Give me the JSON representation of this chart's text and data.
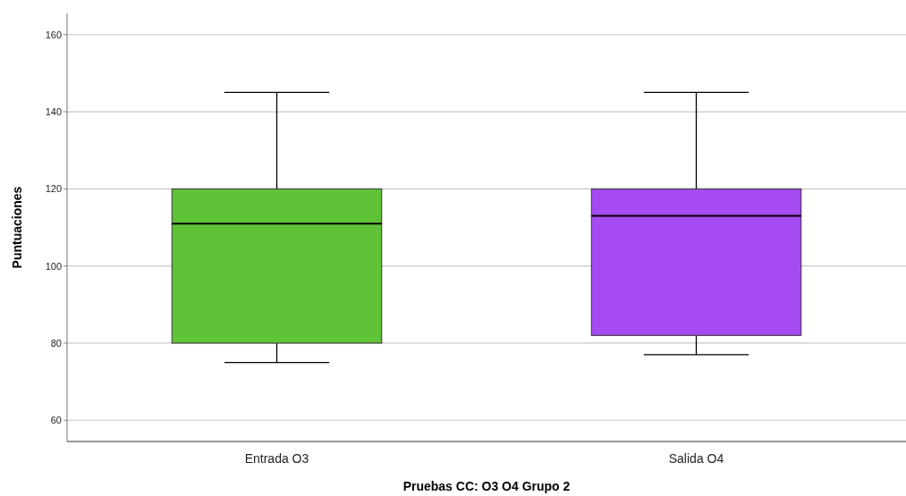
{
  "chart_data": {
    "type": "box",
    "categories": [
      "Entrada O3",
      "Salida O4"
    ],
    "colors": [
      "#5fc338",
      "#a64af1"
    ],
    "boxes": [
      {
        "low": 75,
        "q1": 80,
        "median": 111,
        "q3": 120,
        "high": 145
      },
      {
        "low": 77,
        "q1": 82,
        "median": 113,
        "q3": 120,
        "high": 145
      }
    ],
    "xlabel": "Pruebas CC: O3 O4 Grupo 2",
    "ylabel": "Puntuaciones",
    "ylim": [
      54.5,
      165.5
    ],
    "yticks": [
      60,
      80,
      100,
      120,
      140,
      160
    ],
    "grid": "y"
  }
}
